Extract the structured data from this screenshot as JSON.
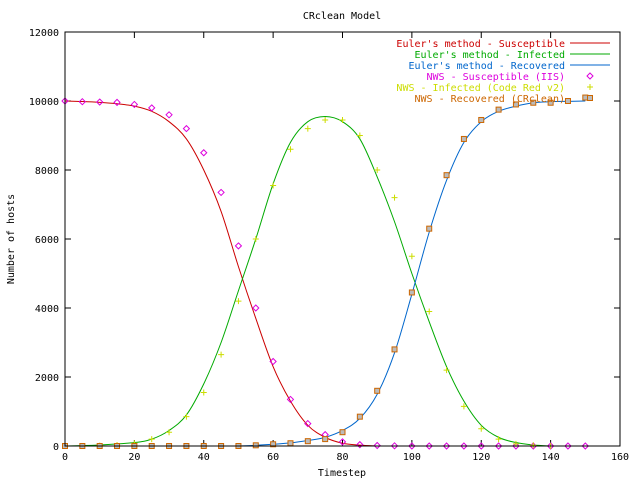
{
  "chart_data": {
    "type": "line",
    "title": "CRclean Model",
    "xlabel": "Timestep",
    "ylabel": "Number of hosts",
    "xlim": [
      0,
      160
    ],
    "ylim": [
      0,
      12000
    ],
    "xticks": [
      0,
      20,
      40,
      60,
      80,
      100,
      120,
      140,
      160
    ],
    "yticks": [
      0,
      2000,
      4000,
      6000,
      8000,
      10000,
      12000
    ],
    "xtick_labels": [
      "0",
      "20",
      "40",
      "60",
      "80",
      "100",
      "120",
      "140",
      "160"
    ],
    "ytick_labels": [
      "0",
      "2000",
      "4000",
      "6000",
      "8000",
      "10000",
      "12000"
    ],
    "grid": false,
    "legend_position": "top-right",
    "colors": {
      "susceptible_line": "#cc0000",
      "infected_line": "#00aa00",
      "recovered_line": "#0066cc",
      "susceptible_points": "#dd00dd",
      "infected_points": "#ccdd00",
      "recovered_points": "#cc6600",
      "frame": "#000000"
    },
    "series": [
      {
        "name": "Euler's method - Susceptible",
        "kind": "line",
        "color": "#cc0000",
        "x": [
          0,
          5,
          10,
          15,
          20,
          25,
          30,
          35,
          40,
          45,
          50,
          55,
          60,
          65,
          70,
          75,
          80,
          85,
          90
        ],
        "values": [
          10000,
          9985,
          9960,
          9920,
          9850,
          9700,
          9400,
          8900,
          8000,
          6800,
          5200,
          3700,
          2300,
          1300,
          600,
          250,
          80,
          25,
          0
        ]
      },
      {
        "name": "Euler's method - Infected",
        "kind": "line",
        "color": "#00aa00",
        "x": [
          0,
          10,
          20,
          25,
          30,
          35,
          40,
          45,
          50,
          55,
          60,
          65,
          70,
          75,
          80,
          85,
          90,
          95,
          100,
          105,
          110,
          115,
          120,
          125,
          130,
          135,
          140
        ],
        "values": [
          0,
          30,
          100,
          200,
          450,
          900,
          1800,
          3000,
          4500,
          6000,
          7600,
          8800,
          9400,
          9550,
          9400,
          8900,
          7800,
          6500,
          5000,
          3600,
          2300,
          1300,
          600,
          250,
          100,
          30,
          0
        ]
      },
      {
        "name": "Euler's method - Recovered",
        "kind": "line",
        "color": "#0066cc",
        "x": [
          50,
          55,
          60,
          65,
          70,
          75,
          80,
          85,
          90,
          95,
          100,
          105,
          110,
          115,
          120,
          125,
          130,
          135,
          140,
          145,
          150
        ],
        "values": [
          0,
          20,
          50,
          90,
          160,
          250,
          450,
          800,
          1500,
          2700,
          4400,
          6200,
          7700,
          8800,
          9400,
          9700,
          9850,
          9950,
          9980,
          9990,
          10000
        ]
      },
      {
        "name": "NWS - Susceptible (IIS)",
        "kind": "points",
        "marker": "diamond",
        "color": "#dd00dd",
        "x": [
          0,
          5,
          10,
          15,
          20,
          25,
          30,
          35,
          40,
          45,
          50,
          55,
          60,
          65,
          70,
          75,
          80,
          85,
          90,
          95,
          100,
          105,
          110,
          115,
          120,
          125,
          130,
          135,
          140,
          145,
          150
        ],
        "values": [
          10000,
          9980,
          9970,
          9960,
          9900,
          9800,
          9600,
          9200,
          8500,
          7350,
          5800,
          4000,
          2450,
          1350,
          650,
          330,
          120,
          40,
          15,
          5,
          0,
          0,
          0,
          0,
          0,
          0,
          0,
          0,
          0,
          0,
          0
        ]
      },
      {
        "name": "NWS - Infected (Code Red v2)",
        "kind": "points",
        "marker": "plus",
        "color": "#ccdd00",
        "x": [
          0,
          5,
          10,
          15,
          20,
          25,
          30,
          35,
          40,
          45,
          50,
          55,
          60,
          65,
          70,
          75,
          80,
          85,
          90,
          95,
          100,
          105,
          110,
          115,
          120,
          125,
          130,
          135,
          140
        ],
        "values": [
          0,
          0,
          10,
          30,
          80,
          200,
          400,
          850,
          1550,
          2650,
          4200,
          6000,
          7550,
          8600,
          9200,
          9450,
          9450,
          9000,
          8000,
          7200,
          5500,
          3900,
          2200,
          1150,
          500,
          200,
          60,
          20,
          0
        ]
      },
      {
        "name": "NWS - Recovered (CRclean)",
        "kind": "points",
        "marker": "square",
        "color": "#cc6600",
        "x": [
          0,
          5,
          10,
          15,
          20,
          25,
          30,
          35,
          40,
          45,
          50,
          55,
          60,
          65,
          70,
          75,
          80,
          85,
          90,
          95,
          100,
          105,
          110,
          115,
          120,
          125,
          130,
          135,
          140,
          145,
          150
        ],
        "values": [
          0,
          0,
          0,
          0,
          0,
          0,
          0,
          0,
          0,
          0,
          0,
          20,
          50,
          80,
          140,
          200,
          400,
          850,
          1600,
          2800,
          4450,
          6300,
          7850,
          8900,
          9450,
          9750,
          9900,
          9950,
          9950,
          10000,
          10100
        ]
      }
    ]
  }
}
